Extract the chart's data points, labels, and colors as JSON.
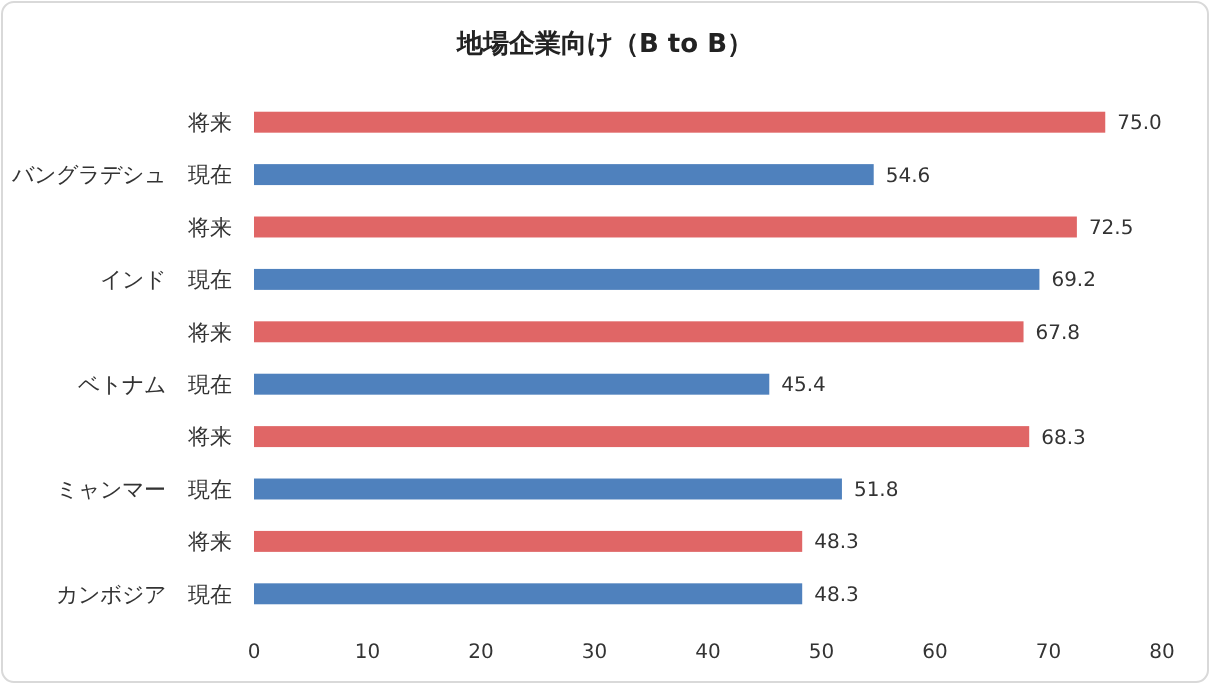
{
  "chart_data": {
    "type": "bar",
    "orientation": "horizontal",
    "title": "地場企業向け（B to B）",
    "categories": [
      "将来",
      "バングラデシュ　現在",
      "将来",
      "インド　現在",
      "将来",
      "ベトナム　現在",
      "将来",
      "ミャンマー　現在",
      "将来",
      "カンボジア　現在"
    ],
    "values": [
      75.0,
      54.6,
      72.5,
      69.2,
      67.8,
      45.4,
      68.3,
      51.8,
      48.3,
      48.3
    ],
    "value_labels": [
      "75.0",
      "54.6",
      "72.5",
      "69.2",
      "67.8",
      "45.4",
      "68.3",
      "51.8",
      "48.3",
      "48.3"
    ],
    "colors": [
      "#e06666",
      "#4f81bd",
      "#e06666",
      "#4f81bd",
      "#e06666",
      "#4f81bd",
      "#e06666",
      "#4f81bd",
      "#e06666",
      "#4f81bd"
    ],
    "xlim": [
      0,
      80
    ],
    "xticks": [
      0,
      10,
      20,
      30,
      40,
      50,
      60,
      70,
      80
    ]
  }
}
